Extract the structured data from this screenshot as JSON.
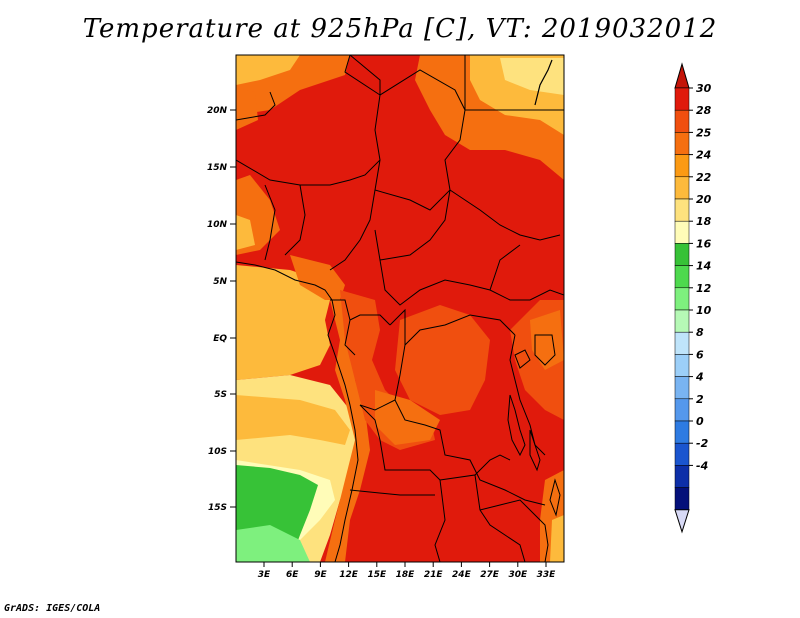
{
  "title": "Temperature at 925hPa [C], VT: 2019032012",
  "credit": "GrADS: IGES/COLA",
  "map": {
    "lat_labels": [
      "20N",
      "15N",
      "10N",
      "5N",
      "EQ",
      "5S",
      "10S",
      "15S"
    ],
    "lon_labels": [
      "3E",
      "6E",
      "9E",
      "12E",
      "15E",
      "18E",
      "21E",
      "24E",
      "27E",
      "30E",
      "33E"
    ]
  },
  "colorbar": {
    "labels": [
      "30",
      "28",
      "25",
      "24",
      "22",
      "20",
      "18",
      "16",
      "14",
      "12",
      "10",
      "8",
      "6",
      "4",
      "2",
      "0",
      "-2",
      "-4"
    ],
    "colors": [
      "#e01a0c",
      "#f04f0f",
      "#f56f10",
      "#fb9a14",
      "#fdba3c",
      "#fee27e",
      "#fffcb8",
      "#37c237",
      "#4ed94e",
      "#7ef07e",
      "#b6f9b6",
      "#bfe4fa",
      "#9ccff8",
      "#79b4f2",
      "#5598ec",
      "#2e7be2",
      "#1a55cf",
      "#0d2fa8",
      "#04107a"
    ],
    "top_arrow_color": "#c41408",
    "bottom_arrow_color": "#d8daf6"
  }
}
